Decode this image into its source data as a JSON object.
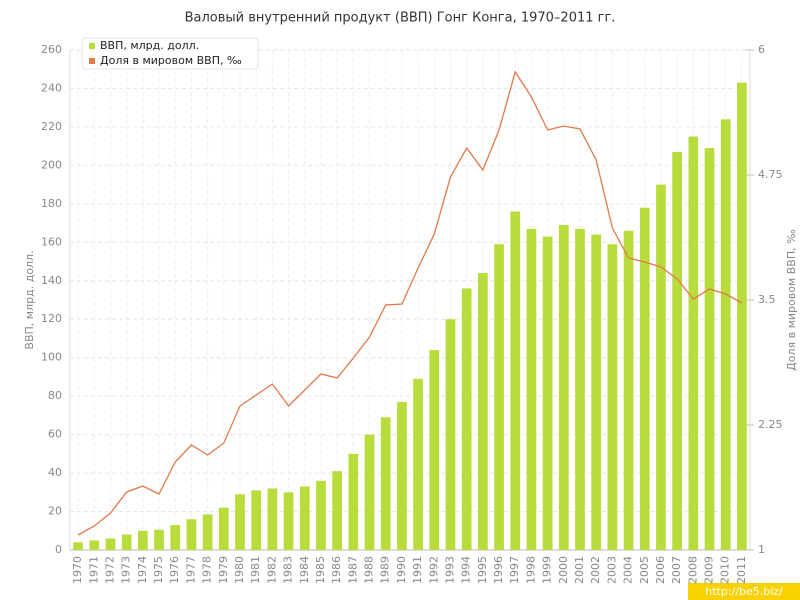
{
  "chart_data": {
    "type": "bar-line",
    "title": "Валовый внутренний продукт (ВВП) Гонг Конга, 1970–2011 гг.",
    "y_label": "ВВП, млрд. долл.",
    "y2_label": "Доля в мировом ВВП, ‰",
    "watermark": "http://be5.biz/",
    "categories": [
      "1970",
      "1971",
      "1972",
      "1973",
      "1974",
      "1975",
      "1976",
      "1977",
      "1978",
      "1979",
      "1980",
      "1981",
      "1982",
      "1983",
      "1984",
      "1985",
      "1986",
      "1987",
      "1988",
      "1989",
      "1990",
      "1991",
      "1992",
      "1993",
      "1994",
      "1995",
      "1996",
      "1997",
      "1998",
      "1999",
      "2000",
      "2001",
      "2002",
      "2003",
      "2004",
      "2005",
      "2006",
      "2007",
      "2008",
      "2009",
      "2010",
      "2011"
    ],
    "series": [
      {
        "name": "ВВП, млрд. долл.",
        "color": "#b8dc3c",
        "type": "bar",
        "values": [
          4,
          5,
          6,
          8,
          10,
          10.5,
          13,
          16,
          18.5,
          22,
          29,
          31,
          32,
          30,
          33,
          36,
          41,
          50,
          60,
          69,
          77,
          89,
          104,
          120,
          136,
          144,
          159,
          176,
          167,
          163,
          169,
          167,
          164,
          159,
          166,
          178,
          190,
          207,
          215,
          209,
          224,
          243
        ]
      },
      {
        "name": "Доля в мировом ВВП, ‰",
        "color": "#e07a4a",
        "type": "line",
        "axis": "y2",
        "values": [
          1.15,
          1.24,
          1.37,
          1.58,
          1.64,
          1.56,
          1.88,
          2.05,
          1.95,
          2.07,
          2.44,
          2.55,
          2.66,
          2.44,
          2.6,
          2.76,
          2.72,
          2.92,
          3.13,
          3.45,
          3.46,
          3.82,
          4.16,
          4.73,
          5.02,
          4.8,
          5.2,
          5.78,
          5.53,
          5.2,
          5.24,
          5.21,
          4.9,
          4.22,
          3.92,
          3.88,
          3.83,
          3.71,
          3.51,
          3.61,
          3.56,
          3.47
        ]
      }
    ],
    "ylim": [
      0,
      260
    ],
    "yticks": [
      0,
      20,
      40,
      60,
      80,
      100,
      120,
      140,
      160,
      180,
      200,
      220,
      240,
      260
    ],
    "y2lim": [
      1,
      6
    ],
    "y2ticks": [
      1,
      2.25,
      3.5,
      4.75,
      6
    ],
    "grid": true,
    "legend": "top-left"
  }
}
